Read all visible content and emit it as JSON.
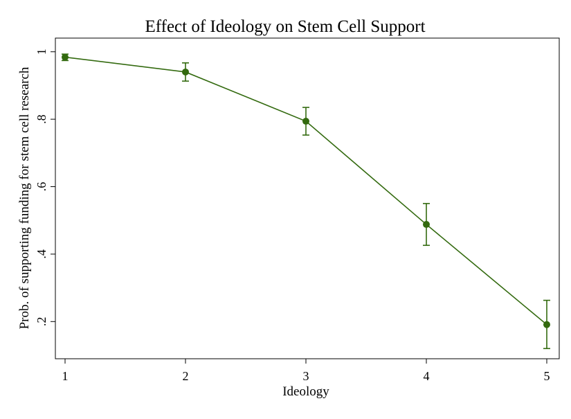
{
  "chart_data": {
    "type": "line",
    "title": "Effect of Ideology on Stem Cell Support",
    "xlabel": "Ideology",
    "ylabel": "Prob. of supporting funding for stem cell research",
    "x": [
      1,
      2,
      3,
      4,
      5
    ],
    "series": [
      {
        "values": [
          0.984,
          0.94,
          0.794,
          0.488,
          0.191
        ],
        "ci_lower": [
          0.974,
          0.913,
          0.753,
          0.426,
          0.12
        ],
        "ci_upper": [
          0.993,
          0.967,
          0.835,
          0.55,
          0.263
        ],
        "color": "#336a0f"
      }
    ],
    "xlim": [
      1,
      5
    ],
    "ylim": [
      0.1,
      1.02
    ],
    "xticks": [
      1,
      2,
      3,
      4,
      5
    ],
    "xtick_labels": [
      "1",
      "2",
      "3",
      "4",
      "5"
    ],
    "yticks": [
      0.2,
      0.4,
      0.6,
      0.8,
      1.0
    ],
    "ytick_labels": [
      ".2",
      ".4",
      ".6",
      ".8",
      "1"
    ],
    "grid": false,
    "legend": "none"
  }
}
